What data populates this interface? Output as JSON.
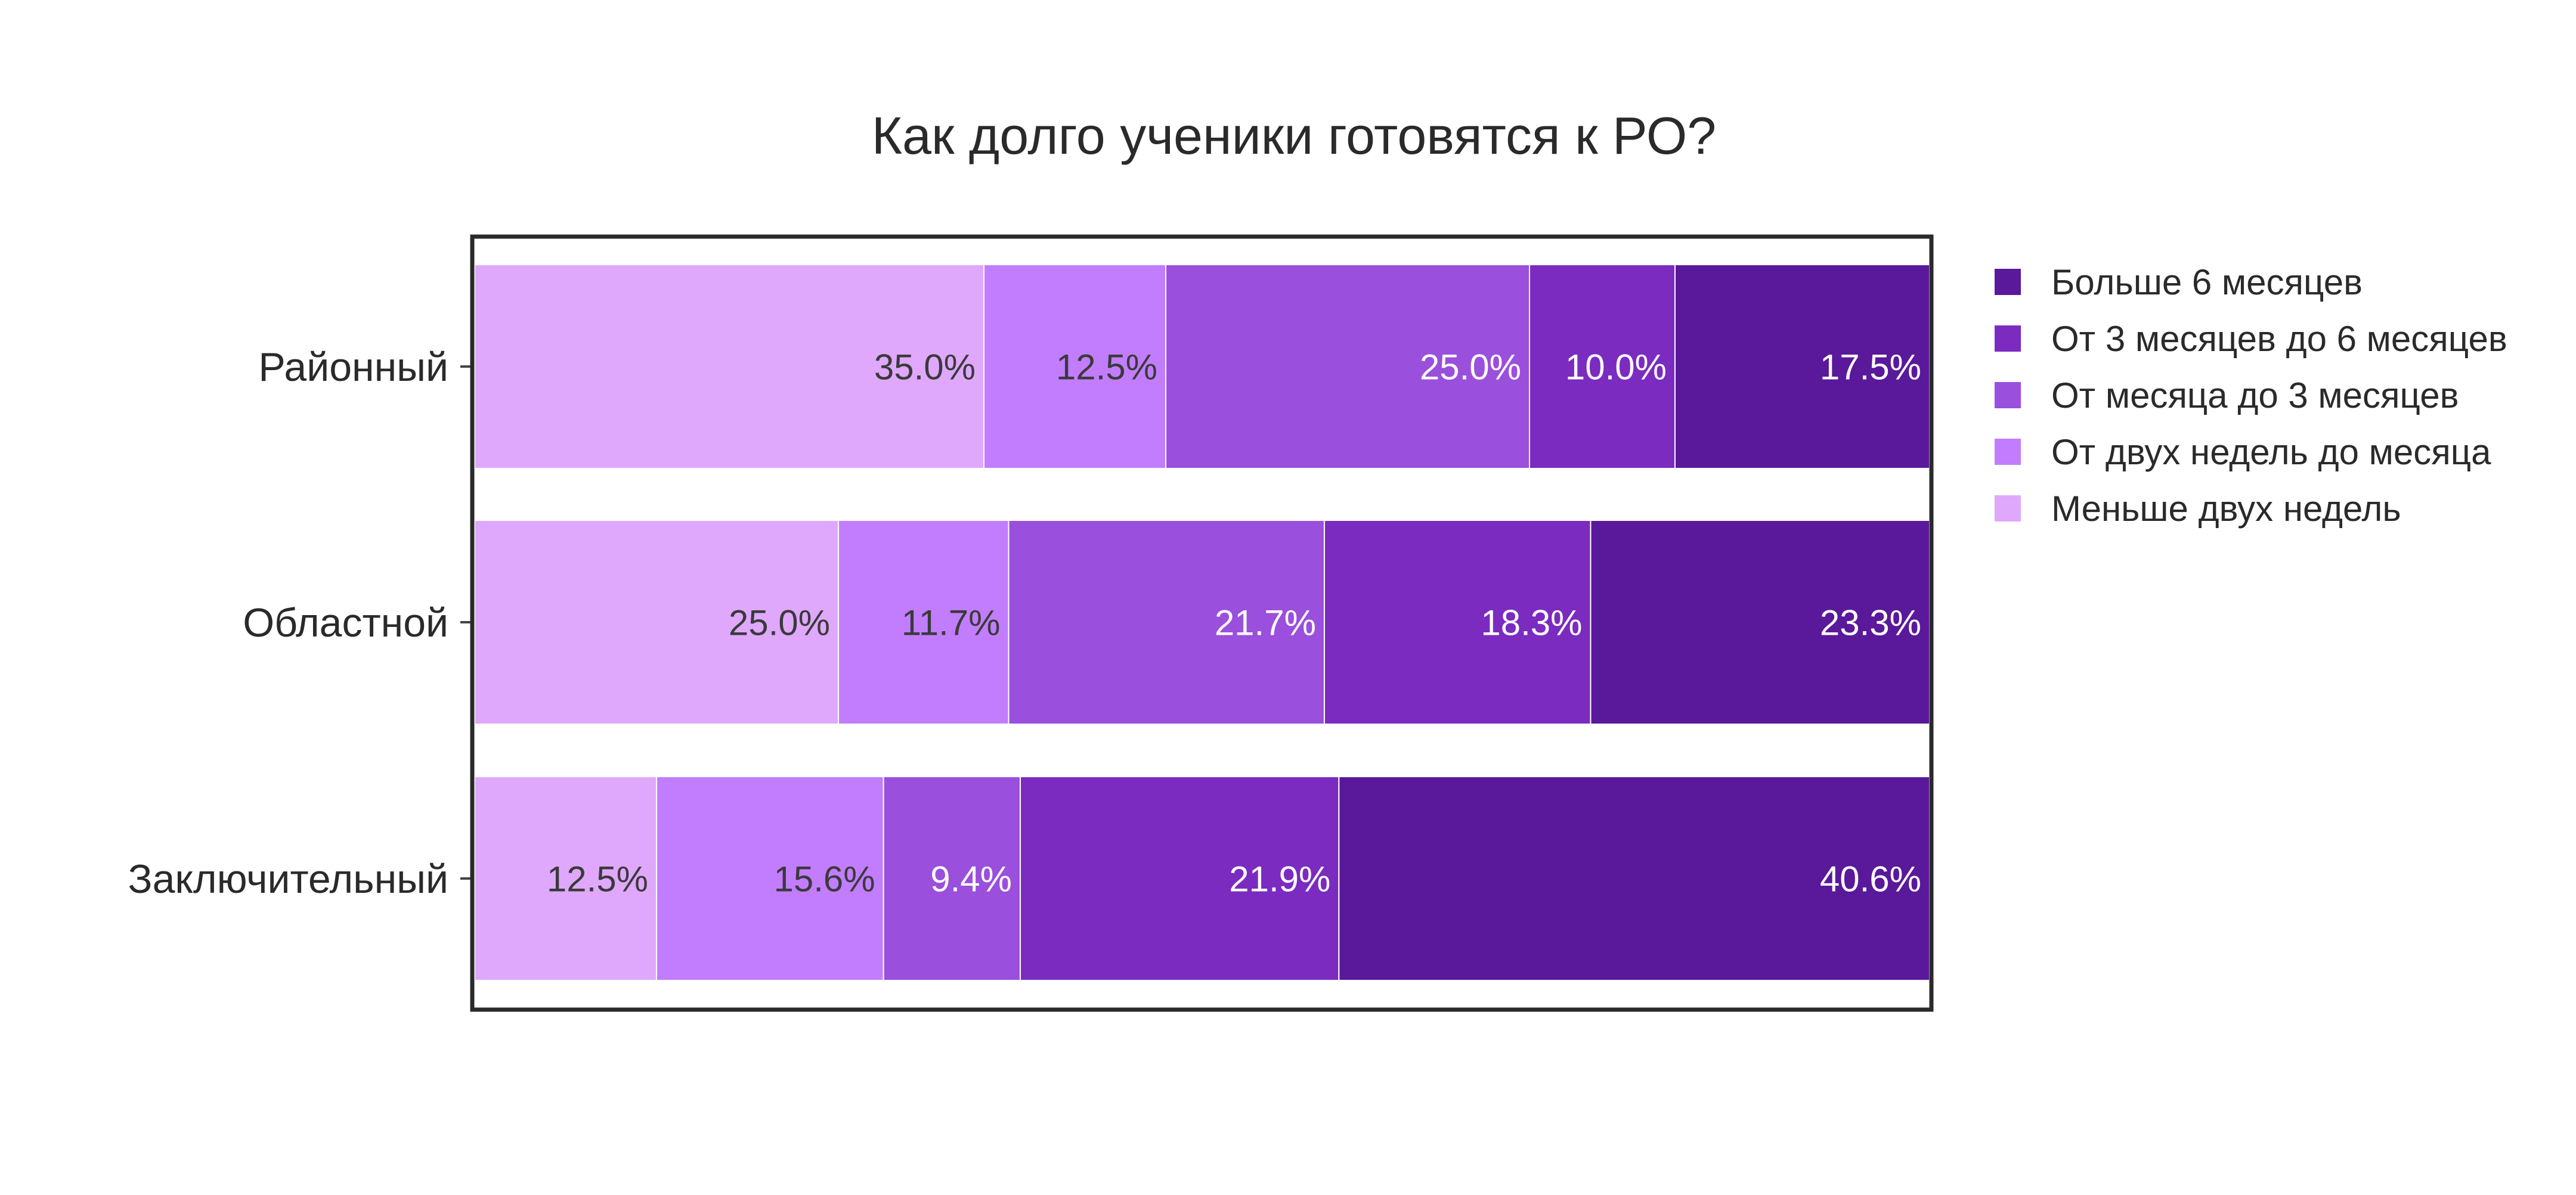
{
  "chart_data": {
    "type": "bar",
    "orientation": "horizontal",
    "stacked": true,
    "normalized": true,
    "title": "Как долго ученики готовятся к РО?",
    "xlabel": "",
    "ylabel": "",
    "xlim": [
      0,
      100
    ],
    "grid": false,
    "legend_position": "right",
    "categories": [
      "Районный",
      "Областной",
      "Заключительный"
    ],
    "series": [
      {
        "name": "Меньше двух недель",
        "color": "#dfa8fd",
        "values": [
          35.0,
          25.0,
          12.5
        ]
      },
      {
        "name": "От двух недель до месяца",
        "color": "#c27dfe",
        "values": [
          12.5,
          11.7,
          15.6
        ]
      },
      {
        "name": "От месяца до 3 месяцев",
        "color": "#9a4fdd",
        "values": [
          25.0,
          21.7,
          9.4
        ]
      },
      {
        "name": "От 3 месяцев до 6 месяцев",
        "color": "#7b2bc0",
        "values": [
          10.0,
          18.3,
          21.9
        ]
      },
      {
        "name": "Больше 6 месяцев",
        "color": "#5a189a",
        "values": [
          17.5,
          23.3,
          40.6
        ]
      }
    ],
    "data_labels": [
      [
        "35.0%",
        "12.5%",
        "25.0%",
        "10.0%",
        "17.5%"
      ],
      [
        "25.0%",
        "11.7%",
        "21.7%",
        "18.3%",
        "23.3%"
      ],
      [
        "12.5%",
        "15.6%",
        "9.4%",
        "21.9%",
        "40.6%"
      ]
    ],
    "legend_order": [
      4,
      3,
      2,
      1,
      0
    ]
  },
  "colors": {
    "frame": "#2a2a2a",
    "dark_label_text": "#3a3a3a",
    "light_label_text": "#ffffff"
  }
}
